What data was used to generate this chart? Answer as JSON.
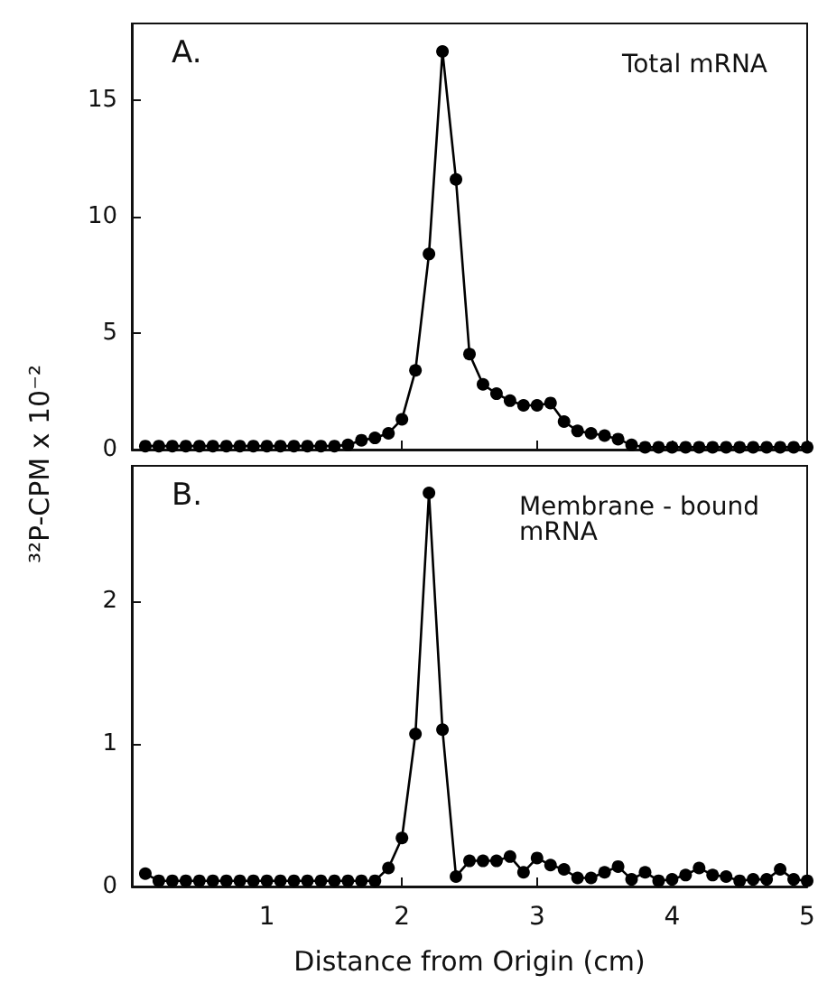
{
  "chart_data": [
    {
      "type": "line",
      "title": "A.",
      "ylabel": "³²P-CPM x 10⁻²",
      "annotations": [
        "Total mRNA"
      ],
      "x": [
        0.1,
        0.2,
        0.3,
        0.4,
        0.5,
        0.6,
        0.7,
        0.8,
        0.9,
        1.0,
        1.1,
        1.2,
        1.3,
        1.4,
        1.5,
        1.6,
        1.7,
        1.8,
        1.9,
        2.0,
        2.1,
        2.2,
        2.3,
        2.4,
        2.5,
        2.6,
        2.7,
        2.8,
        2.9,
        3.0,
        3.1,
        3.2,
        3.3,
        3.4,
        3.5,
        3.6,
        3.7,
        3.8,
        3.9,
        4.0,
        4.1,
        4.2,
        4.3,
        4.4,
        4.5,
        4.6,
        4.7,
        4.8,
        4.9,
        5.0
      ],
      "series": [
        {
          "color": "#000000",
          "values": [
            0.15,
            0.15,
            0.15,
            0.15,
            0.15,
            0.15,
            0.15,
            0.15,
            0.15,
            0.15,
            0.15,
            0.15,
            0.15,
            0.15,
            0.15,
            0.2,
            0.4,
            0.5,
            0.7,
            1.3,
            3.4,
            8.4,
            17.1,
            11.6,
            4.1,
            2.8,
            2.4,
            2.1,
            1.9,
            1.9,
            2.0,
            1.2,
            0.8,
            0.7,
            0.6,
            0.45,
            0.2,
            0.1,
            0.1,
            0.1,
            0.1,
            0.1,
            0.1,
            0.1,
            0.1,
            0.1,
            0.1,
            0.1,
            0.1,
            0.1
          ]
        }
      ],
      "xlim": [
        0,
        5
      ],
      "xticks": [
        1,
        2,
        3,
        4,
        5
      ],
      "ylim": [
        0,
        18.3
      ],
      "yticks": [
        0,
        5,
        10,
        15
      ],
      "tick_labels": "y",
      "marker": "circle",
      "line_style": "solid"
    },
    {
      "type": "line",
      "title": "B.",
      "xlabel": "Distance from Origin (cm)",
      "annotations": [
        "Membrane - bound mRNA"
      ],
      "x": [
        0.1,
        0.2,
        0.3,
        0.4,
        0.5,
        0.6,
        0.7,
        0.8,
        0.9,
        1.0,
        1.1,
        1.2,
        1.3,
        1.4,
        1.5,
        1.6,
        1.7,
        1.8,
        1.9,
        2.0,
        2.1,
        2.2,
        2.3,
        2.4,
        2.5,
        2.6,
        2.7,
        2.8,
        2.9,
        3.0,
        3.1,
        3.2,
        3.3,
        3.4,
        3.5,
        3.6,
        3.7,
        3.8,
        3.9,
        4.0,
        4.1,
        4.2,
        4.3,
        4.4,
        4.5,
        4.6,
        4.7,
        4.8,
        4.9,
        5.0
      ],
      "series": [
        {
          "color": "#000000",
          "values": [
            0.09,
            0.04,
            0.04,
            0.04,
            0.04,
            0.04,
            0.04,
            0.04,
            0.04,
            0.04,
            0.04,
            0.04,
            0.04,
            0.04,
            0.04,
            0.04,
            0.04,
            0.04,
            0.13,
            0.34,
            1.07,
            2.76,
            1.1,
            0.07,
            0.18,
            0.18,
            0.18,
            0.21,
            0.1,
            0.2,
            0.15,
            0.12,
            0.06,
            0.06,
            0.1,
            0.14,
            0.05,
            0.1,
            0.04,
            0.05,
            0.08,
            0.13,
            0.08,
            0.07,
            0.04,
            0.05,
            0.05,
            0.12,
            0.05,
            0.04
          ]
        }
      ],
      "xlim": [
        0,
        5
      ],
      "xticks": [
        1,
        2,
        3,
        4,
        5
      ],
      "ylim": [
        0,
        2.95
      ],
      "yticks": [
        0,
        1,
        2
      ],
      "marker": "circle",
      "line_style": "solid"
    }
  ]
}
